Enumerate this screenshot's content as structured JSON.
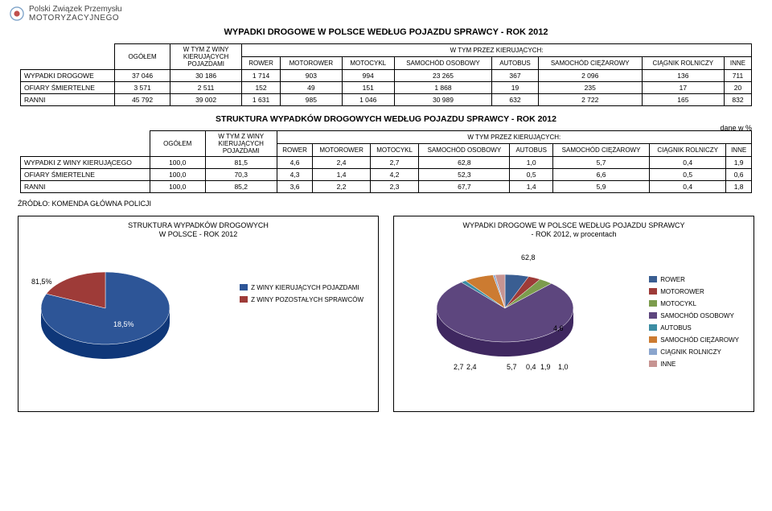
{
  "logo": {
    "line1": "Polski Związek Przemysłu",
    "line2": "MOTORYZACYJNEGO",
    "icon_color_outer": "#7ea3c9",
    "icon_color_inner": "#c0504d"
  },
  "page_title": "WYPADKI DROGOWE W POLSCE WEDŁUG POJAZDU SPRAWCY - ROK 2012",
  "table1": {
    "group_header": "W TYM PRZEZ KIERUJĄCYCH:",
    "col_ogolem": "OGÓŁEM",
    "col_winy": "W TYM Z WINY KIERUJĄCYCH POJAZDAMI",
    "cols": [
      "ROWER",
      "MOTOROWER",
      "MOTOCYKL",
      "SAMOCHÓD OSOBOWY",
      "AUTOBUS",
      "SAMOCHÓD CIĘŻAROWY",
      "CIĄGNIK ROLNICZY",
      "INNE"
    ],
    "rows": [
      {
        "label": "WYPADKI DROGOWE",
        "v": [
          "37 046",
          "30 186",
          "1 714",
          "903",
          "994",
          "23 265",
          "367",
          "2 096",
          "136",
          "711"
        ]
      },
      {
        "label": "OFIARY ŚMIERTELNE",
        "v": [
          "3 571",
          "2 511",
          "152",
          "49",
          "151",
          "1 868",
          "19",
          "235",
          "17",
          "20"
        ]
      },
      {
        "label": "RANNI",
        "v": [
          "45 792",
          "39 002",
          "1 631",
          "985",
          "1 046",
          "30 989",
          "632",
          "2 722",
          "165",
          "832"
        ]
      }
    ]
  },
  "table2_title": "STRUKTURA WYPADKÓW DROGOWYCH WEDŁUG POJAZDU SPRAWCY - ROK 2012",
  "dane_label": "dane w %",
  "table2": {
    "group_header": "W TYM PRZEZ KIERUJĄCYCH:",
    "col_ogolem": "OGÓŁEM",
    "col_winy": "W TYM Z WINY KIERUJĄCYCH POJAZDAMI",
    "cols": [
      "ROWER",
      "MOTOROWER",
      "MOTOCYKL",
      "SAMOCHÓD OSOBOWY",
      "AUTOBUS",
      "SAMOCHÓD CIĘŻAROWY",
      "CIĄGNIK ROLNICZY",
      "INNE"
    ],
    "rows": [
      {
        "label": "WYPADKI Z WINY KIERUJĄCEGO",
        "v": [
          "100,0",
          "81,5",
          "4,6",
          "2,4",
          "2,7",
          "62,8",
          "1,0",
          "5,7",
          "0,4",
          "1,9"
        ]
      },
      {
        "label": "OFIARY ŚMIERTELNE",
        "v": [
          "100,0",
          "70,3",
          "4,3",
          "1,4",
          "4,2",
          "52,3",
          "0,5",
          "6,6",
          "0,5",
          "0,6"
        ]
      },
      {
        "label": "RANNI",
        "v": [
          "100,0",
          "85,2",
          "3,6",
          "2,2",
          "2,3",
          "67,7",
          "1,4",
          "5,9",
          "0,4",
          "1,8"
        ]
      }
    ]
  },
  "source_label": "ŹRÓDŁO: KOMENDA GŁÓWNA POLICJI",
  "chart1": {
    "title1": "STRUKTURA WYPADKÓW DROGOWYCH",
    "title2": "W POLSCE - ROK 2012",
    "slices": [
      {
        "label": "81,5%",
        "value": 81.5,
        "color": "#2d5597",
        "legend": "Z WINY KIERUJĄCYCH POJAZDAMI"
      },
      {
        "label": "18,5%",
        "value": 18.5,
        "color": "#9e3b38",
        "legend": "Z WINY POZOSTAŁYCH SPRAWCÓW"
      }
    ]
  },
  "chart2": {
    "title1": "WYPADKI DROGOWE W POLSCE WEDŁUG POJAZDU SPRAWCY",
    "title2": "- ROK 2012, w procentach",
    "slices": [
      {
        "label": "4,6",
        "value": 4.6,
        "color": "#3a5e92",
        "legend": "ROWER"
      },
      {
        "label": "2,4",
        "value": 2.4,
        "color": "#9e3b38",
        "legend": "MOTOROWER"
      },
      {
        "label": "2,7",
        "value": 2.7,
        "color": "#7c9c4d",
        "legend": "MOTOCYKL"
      },
      {
        "label": "62,8",
        "value": 62.8,
        "color": "#5d467e",
        "legend": "SAMOCHÓD OSOBOWY"
      },
      {
        "label": "1,0",
        "value": 1.0,
        "color": "#3c8da3",
        "legend": "AUTOBUS"
      },
      {
        "label": "5,7",
        "value": 5.7,
        "color": "#cc7b31",
        "legend": "SAMOCHÓD CIĘŻAROWY"
      },
      {
        "label": "0,4",
        "value": 0.4,
        "color": "#8aa5cd",
        "legend": "CIĄGNIK ROLNICZY"
      },
      {
        "label": "1,9",
        "value": 1.9,
        "color": "#c79492",
        "legend": "INNE"
      }
    ]
  }
}
